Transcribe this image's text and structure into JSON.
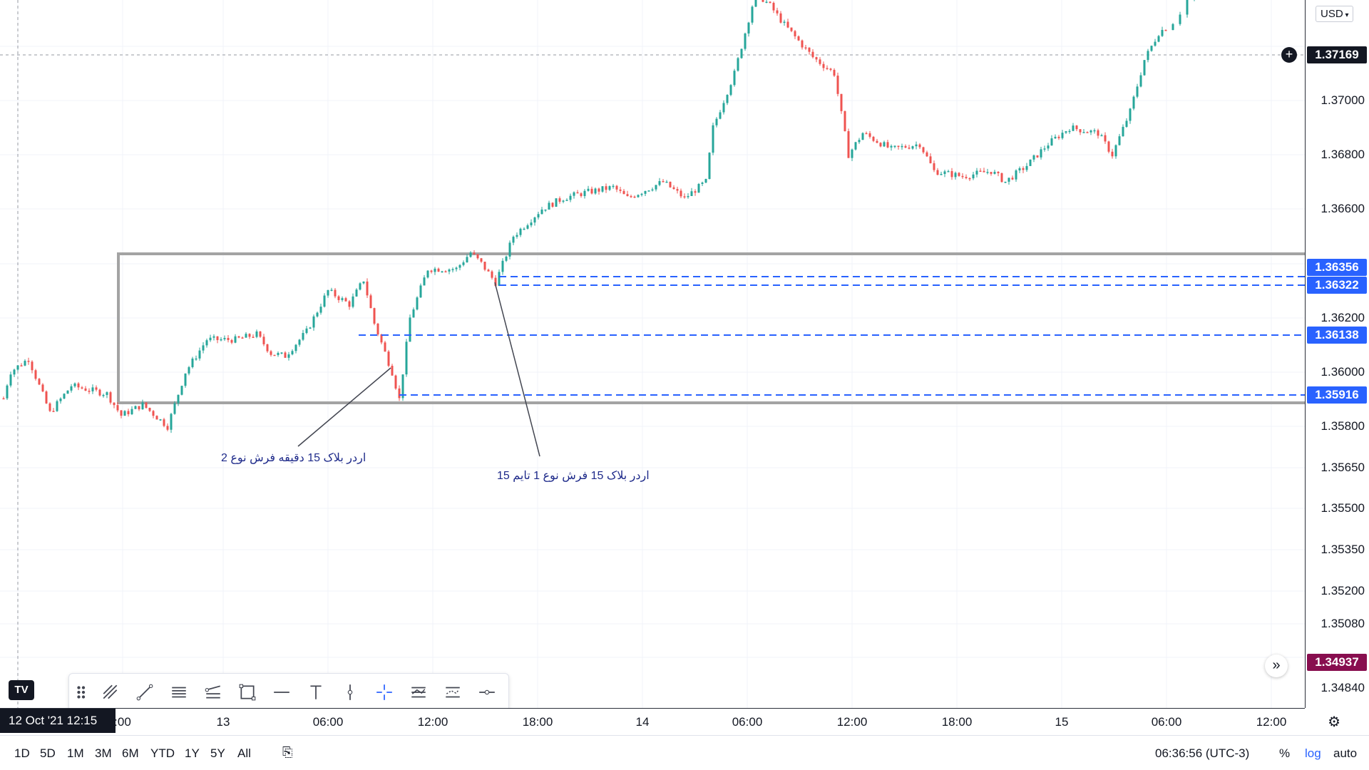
{
  "currency": "USD",
  "price_ticks": [
    "1.37000",
    "1.36800",
    "1.36600",
    "1.36200",
    "1.36000",
    "1.35800",
    "1.35650",
    "1.35500",
    "1.35350",
    "1.35200",
    "1.35080",
    "1.34840"
  ],
  "price_labels": [
    {
      "text": "1.37169",
      "color": "#131722"
    },
    {
      "text": "1.36356",
      "color": "#2962ff"
    },
    {
      "text": "1.36322",
      "color": "#2962ff"
    },
    {
      "text": "1.36138",
      "color": "#2962ff"
    },
    {
      "text": "1.35916",
      "color": "#2962ff"
    },
    {
      "text": "1.34937",
      "color": "#880e4f"
    }
  ],
  "time_ticks": [
    "13",
    "06:00",
    "12:00",
    "18:00",
    "14",
    "06:00",
    "12:00",
    "18:00",
    "15",
    "06:00",
    "12:00"
  ],
  "cursor_date": "12 Oct '21   12:15",
  "cursor_time_fragment": ":00",
  "annotations": {
    "type2": "اردر بلاک  15 دقیقه فرش نوع 2",
    "type1": "اردر بلاک 15 فرش نوع 1 تایم 15"
  },
  "ranges": [
    "1D",
    "5D",
    "1M",
    "3M",
    "6M",
    "YTD",
    "1Y",
    "5Y",
    "All"
  ],
  "clock": "06:36:56 (UTC-3)",
  "scale_options": {
    "percent": "%",
    "log": "log",
    "auto": "auto"
  },
  "colors": {
    "up": "#26a69a",
    "down": "#ef5350",
    "level": "#2962ff",
    "box": "#a3a3a3"
  },
  "logo": "TV",
  "toolbar_icons": [
    "drag-handle-icon",
    "trend-tools-icon",
    "trend-line-icon",
    "parallel-channel-icon",
    "fib-icon",
    "rectangle-icon",
    "horizontal-line-icon",
    "text-tool-icon",
    "vertical-line-icon",
    "crosshair-icon",
    "magnet-icon",
    "measure-icon",
    "more-tools-icon"
  ]
}
